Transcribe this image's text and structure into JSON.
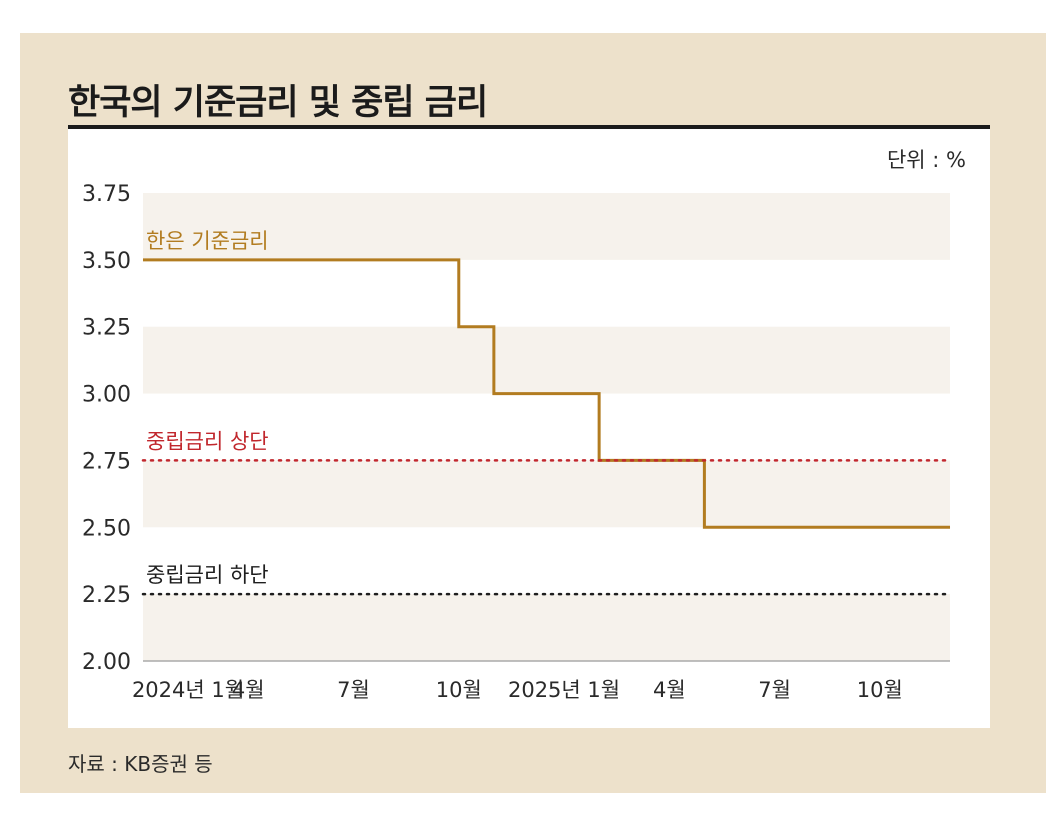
{
  "title": "한국의 기준금리 및 중립 금리",
  "unit_label": "단위 : %",
  "source": "자료 : KB증권 등",
  "colors": {
    "frame_bg": "#ede1cb",
    "policy_rate": "#b27c20",
    "upper_bound": "#c1272d",
    "lower_bound": "#1e1e1e",
    "band": "#f6f2ec"
  },
  "chart_data": {
    "type": "line",
    "title": "한국의 기준금리 및 중립 금리",
    "unit": "%",
    "ylim": [
      2.0,
      3.75
    ],
    "y_ticks": [
      "3.75",
      "3.50",
      "3.25",
      "3.00",
      "2.75",
      "2.50",
      "2.25",
      "2.00"
    ],
    "x_range": [
      "2024-01",
      "2025-12"
    ],
    "x_ticks": [
      {
        "label": "2024년 1월",
        "date": "2024-01"
      },
      {
        "label": "4월",
        "date": "2024-04"
      },
      {
        "label": "7월",
        "date": "2024-07"
      },
      {
        "label": "10월",
        "date": "2024-10"
      },
      {
        "label": "2025년 1월",
        "date": "2025-01"
      },
      {
        "label": "4월",
        "date": "2025-04"
      },
      {
        "label": "7월",
        "date": "2025-07"
      },
      {
        "label": "10월",
        "date": "2025-10"
      }
    ],
    "series": [
      {
        "name": "한은 기준금리",
        "style": "step",
        "color": "#b27c20",
        "points": [
          {
            "date": "2024-01",
            "value": 3.5
          },
          {
            "date": "2024-10",
            "value": 3.25
          },
          {
            "date": "2024-11",
            "value": 3.0
          },
          {
            "date": "2025-02",
            "value": 2.75
          },
          {
            "date": "2025-05",
            "value": 2.5
          },
          {
            "date": "2025-12",
            "value": 2.5
          }
        ]
      },
      {
        "name": "중립금리 상단",
        "style": "dotted",
        "color": "#c1272d",
        "points": [
          {
            "date": "2024-01",
            "value": 2.75
          },
          {
            "date": "2025-12",
            "value": 2.75
          }
        ]
      },
      {
        "name": "중립금리 하단",
        "style": "dotted",
        "color": "#1e1e1e",
        "points": [
          {
            "date": "2024-01",
            "value": 2.25
          },
          {
            "date": "2025-12",
            "value": 2.25
          }
        ]
      }
    ]
  }
}
